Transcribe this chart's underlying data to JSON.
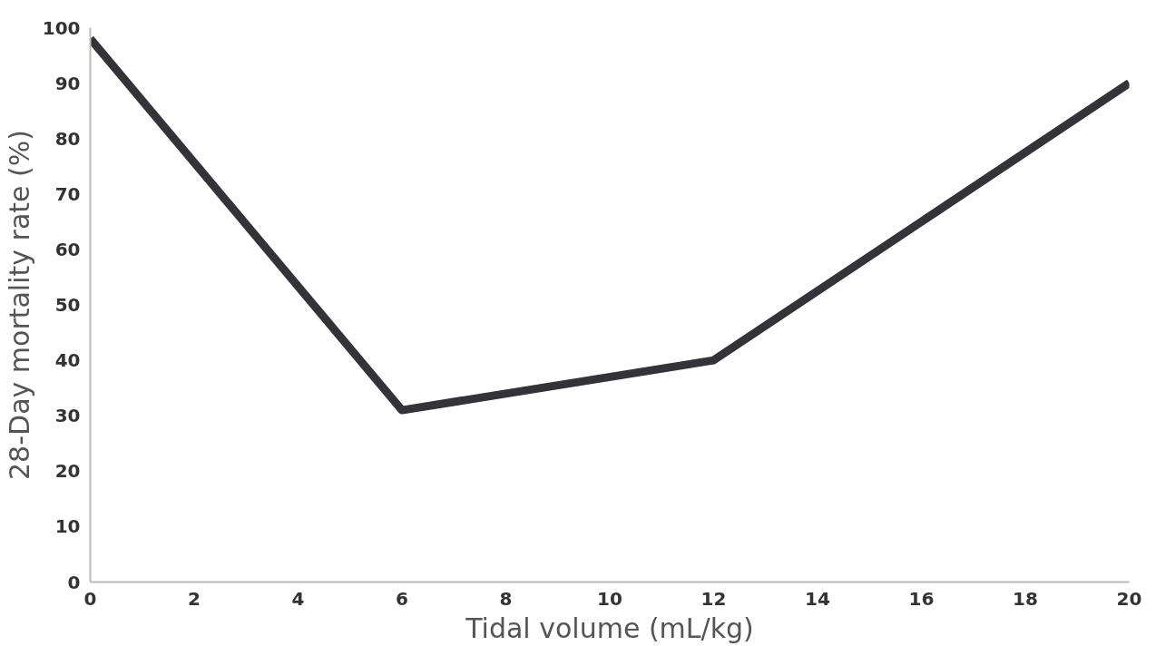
{
  "chart_data": {
    "type": "line",
    "xlabel": "Tidal volume (mL/kg)",
    "ylabel": "28-Day mortality rate (%)",
    "x": [
      0,
      6,
      12,
      20
    ],
    "series": [
      {
        "color": "#333338",
        "values": [
          98,
          31,
          40,
          90
        ]
      }
    ],
    "xlim": [
      0,
      20
    ],
    "xticks": [
      0,
      2,
      4,
      6,
      8,
      10,
      12,
      14,
      16,
      18,
      20
    ],
    "ylim": [
      0,
      100
    ],
    "yticks": [
      0,
      10,
      20,
      30,
      40,
      50,
      60,
      70,
      80,
      90,
      100
    ],
    "grid": false,
    "marker": "none",
    "line_style": "solid"
  }
}
